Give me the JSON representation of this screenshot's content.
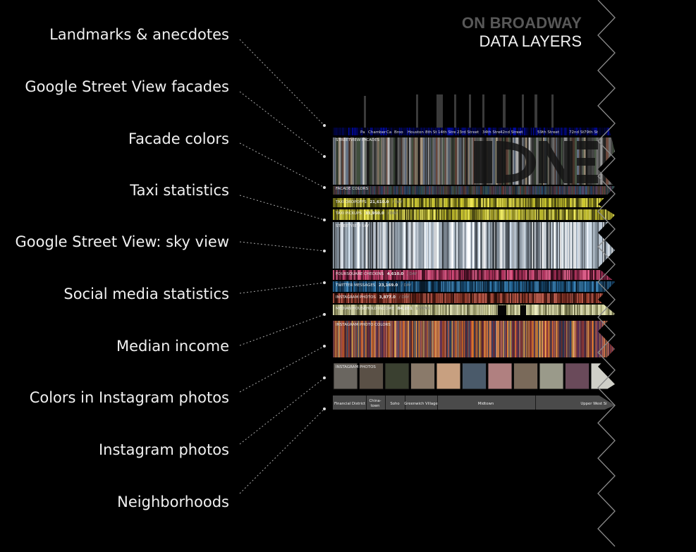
{
  "title": {
    "line1": "ON BROADWAY",
    "line2": "DATA LAYERS"
  },
  "layer_labels": [
    "Landmarks & anecdotes",
    "Google Street View facades",
    "Facade colors",
    "Taxi statistics",
    "Google Street View: sky view",
    "Social media statistics",
    "Median income",
    "Colors in Instagram photos",
    "Instagram photos",
    "Neighborhoods"
  ],
  "streets": [
    "Pa",
    "Chamber",
    "Ca",
    "Broo",
    "Houston",
    "8th St",
    "14th Stre",
    "23rd Street",
    "34th Stre",
    "42nd Street",
    "59th Street",
    "72nd St",
    "79th St"
  ],
  "strip_labels": {
    "facades": "STREETVIEW FACADES",
    "facade_colors": "FACADE COLORS",
    "sky": "STREETVIEW SKY",
    "insta_colors": "INSTAGRAM PHOTO COLORS",
    "insta_photos": "INSTAGRAM PHOTOS"
  },
  "stats": {
    "taxi_dropoffs": {
      "label": "TAXI DROPOFFS",
      "value": "21,610.0",
      "unit": "/ DAY"
    },
    "taxi_pickups": {
      "label": "TAXI PICKUPS",
      "value": "33,950.0",
      "unit": "/ DAY"
    },
    "foursquare": {
      "label": "FOURSQUARE CHECKINS",
      "value": "4,610.0",
      "unit": "/ DAY"
    },
    "twitter": {
      "label": "TWITTER MESSAGES",
      "value": "23,169.0",
      "unit": "/ DAY"
    },
    "instagram": {
      "label": "INSTAGRAM PHOTOS",
      "value": "3,877.0",
      "unit": "/ DAY"
    },
    "income": {
      "label": "MEDIAN HOUSEHOLD INCOME",
      "value": "84,281",
      "unit": "$/YEAR"
    }
  },
  "neighborhoods": [
    "Financial District",
    "China-",
    "town",
    "Soho",
    "Greenwich Village",
    "Midtown",
    "Upper West Si"
  ],
  "colors": {
    "taxi": "#b7b32a",
    "foursquare": "#b0345e",
    "twitter": "#1f5a86",
    "instagram": "#8b3a2a",
    "income": "#9a9a6a"
  }
}
